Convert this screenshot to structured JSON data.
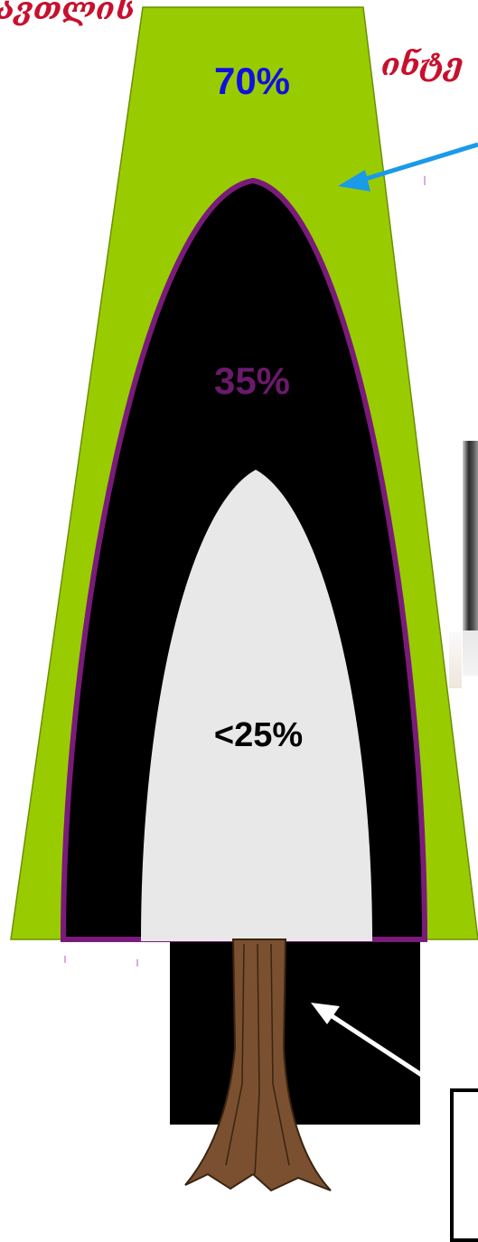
{
  "labels": {
    "title_left": "ავთლის",
    "title_right": "ინტე",
    "outer_percent": "70%",
    "middle_percent": "35%",
    "inner_percent": "<25%"
  },
  "colors": {
    "outer_zone": "#99cc00",
    "middle_zone": "#000000",
    "middle_border": "#7a1a7a",
    "inner_zone": "#e8e8e8",
    "trunk": "#7a5030",
    "outer_percent_text": "#1010e0",
    "middle_percent_text": "#6a1a6a",
    "inner_percent_text": "#000000",
    "arrow_blue": "#1a9ae8",
    "arrow_white": "#ffffff"
  }
}
